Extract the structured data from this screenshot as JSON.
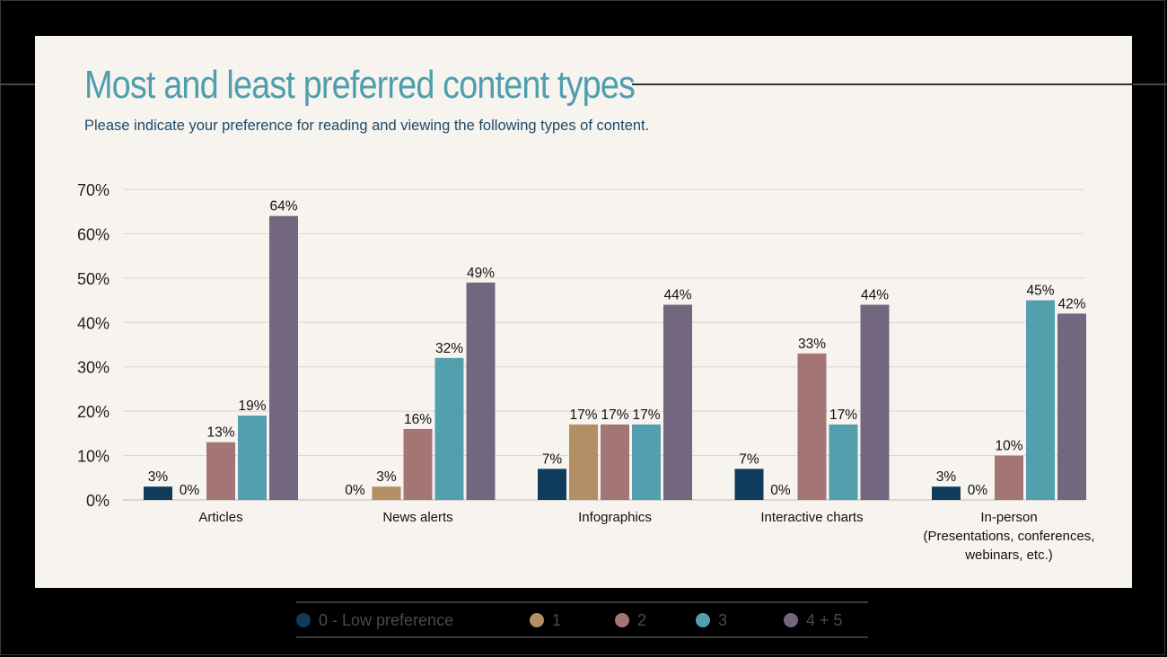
{
  "header": {
    "title": "Most and least preferred content types",
    "subtitle": "Please indicate your preference for reading and viewing the following types of content."
  },
  "colors": {
    "title": "#4e9fae",
    "subtitle": "#1d4a6b",
    "background": "#f7f3ee"
  },
  "legend": {
    "items": [
      {
        "label": "0 - Low preference",
        "color": "#0f3b5c"
      },
      {
        "label": "1",
        "color": "#b38f65"
      },
      {
        "label": "2",
        "color": "#a47575"
      },
      {
        "label": "3",
        "color": "#52a0ae"
      },
      {
        "label": "4 + 5",
        "color": "#72677f"
      }
    ]
  },
  "chart_data": {
    "type": "bar",
    "title": "Most and least preferred content types",
    "categories": [
      [
        "Articles"
      ],
      [
        "News alerts"
      ],
      [
        "Infographics"
      ],
      [
        "Interactive charts"
      ],
      [
        "In-person",
        "(Presentations, conferences,",
        "webinars, etc.)"
      ]
    ],
    "series": [
      {
        "name": "0 - Low preference",
        "color": "#0f3b5c",
        "values": [
          3,
          0,
          7,
          7,
          3
        ]
      },
      {
        "name": "1",
        "color": "#b38f65",
        "values": [
          0,
          3,
          17,
          0,
          0
        ]
      },
      {
        "name": "2",
        "color": "#a47575",
        "values": [
          13,
          16,
          17,
          33,
          10
        ]
      },
      {
        "name": "3",
        "color": "#52a0ae",
        "values": [
          19,
          32,
          17,
          17,
          45
        ]
      },
      {
        "name": "4 + 5",
        "color": "#72677f",
        "values": [
          64,
          49,
          44,
          44,
          42
        ]
      }
    ],
    "value_suffix": "%",
    "ylim": [
      0,
      70
    ],
    "yticks": [
      "0%",
      "10%",
      "20%",
      "30%",
      "40%",
      "50%",
      "60%",
      "70%"
    ],
    "grid": true,
    "legend_position": "bottom"
  }
}
